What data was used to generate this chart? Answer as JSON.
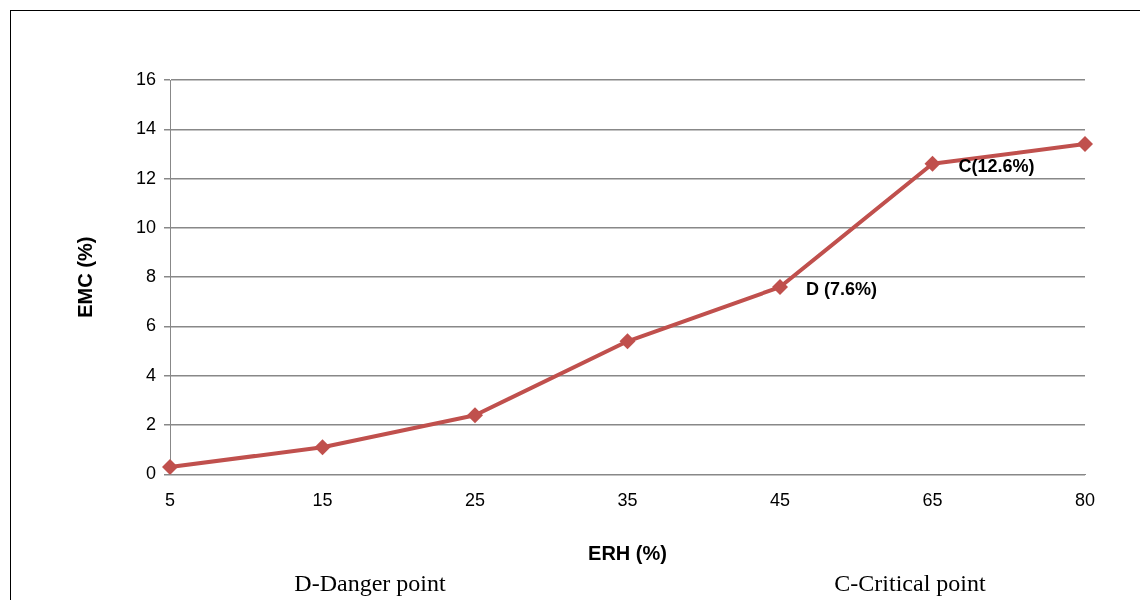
{
  "chart_data": {
    "type": "line",
    "xlabel": "ERH (%)",
    "ylabel": "EMC (%)",
    "categories": [
      "5",
      "15",
      "25",
      "35",
      "45",
      "65",
      "80"
    ],
    "series": [
      {
        "color": "#c0504d",
        "values": [
          0.3,
          1.1,
          2.4,
          5.4,
          7.6,
          12.6,
          13.4
        ]
      }
    ],
    "ylim": [
      0,
      16
    ],
    "yticks": [
      0,
      2,
      4,
      6,
      8,
      10,
      12,
      14,
      16
    ],
    "grid": "y",
    "legend": false,
    "marker": "diamond",
    "line_style": "solid",
    "annotations": [
      {
        "text": "D (7.6%)",
        "x": "45",
        "y": 7.6
      },
      {
        "text": "C(12.6%)",
        "x": "65",
        "y": 12.6
      },
      "D-Danger point",
      "C-Critical point"
    ]
  }
}
